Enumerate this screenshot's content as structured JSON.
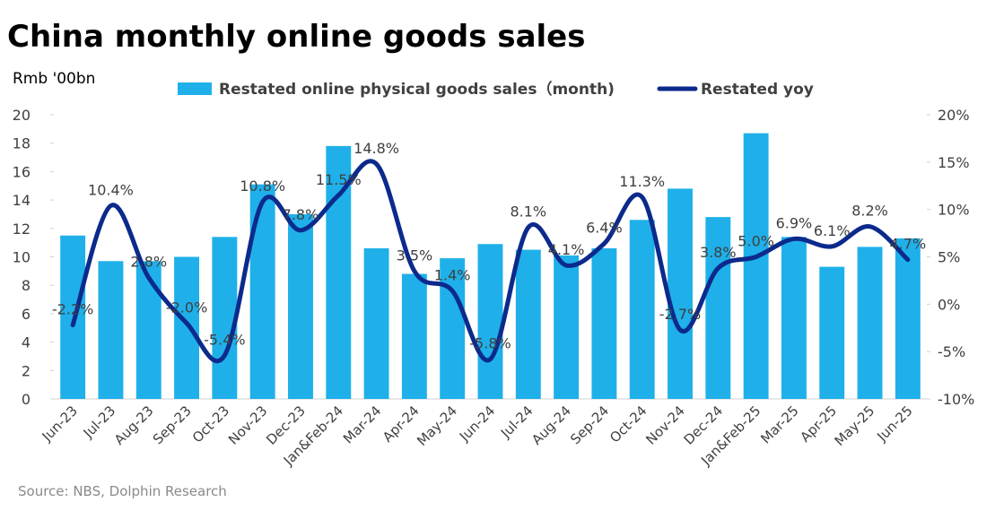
{
  "chart_data": {
    "type": "bar-line",
    "title": "China monthly online goods sales",
    "y_axis_label": "Rmb '00bn",
    "source": "Source: NBS, Dolphin Research",
    "categories": [
      "Jun-23",
      "Jul-23",
      "Aug-23",
      "Sep-23",
      "Oct-23",
      "Nov-23",
      "Dec-23",
      "Jan&Feb-24",
      "Mar-24",
      "Apr-24",
      "May-24",
      "Jun-24",
      "Jul-24",
      "Aug-24",
      "Sep-24",
      "Oct-24",
      "Nov-24",
      "Dec-24",
      "Jan&Feb-25",
      "Mar-25",
      "Apr-25",
      "May-25",
      "Jun-25"
    ],
    "series": [
      {
        "name": "Restated online physical goods sales（month)",
        "type": "bar",
        "color": "#1fb0ea",
        "values": [
          11.5,
          9.7,
          9.7,
          10.0,
          11.4,
          15.1,
          13.0,
          17.8,
          10.6,
          8.8,
          9.9,
          10.9,
          10.5,
          10.1,
          10.6,
          12.6,
          14.8,
          12.8,
          18.7,
          11.4,
          9.3,
          10.7,
          11.3
        ]
      },
      {
        "name": "Restated yoy",
        "type": "line",
        "axis": "y2",
        "color": "#0c2a8c",
        "values": [
          -2.2,
          10.4,
          2.8,
          -2.0,
          -5.4,
          10.8,
          7.8,
          11.5,
          14.8,
          3.5,
          1.4,
          -5.8,
          8.1,
          4.1,
          6.4,
          11.3,
          -2.7,
          3.8,
          5.0,
          6.9,
          6.1,
          8.2,
          4.7
        ],
        "value_labels": [
          "-2.2%",
          "10.4%",
          "2.8%",
          "-2.0%",
          "-5.4%",
          "10.8%",
          "7.8%",
          "11.5%",
          "14.8%",
          "3.5%",
          "1.4%",
          "-5.8%",
          "8.1%",
          "4.1%",
          "6.4%",
          "11.3%",
          "-2.7%",
          "3.8%",
          "5.0%",
          "6.9%",
          "6.1%",
          "8.2%",
          "4.7%"
        ]
      }
    ],
    "ylim": [
      0,
      20
    ],
    "yticks": [
      0,
      2,
      4,
      6,
      8,
      10,
      12,
      14,
      16,
      18,
      20
    ],
    "y2lim": [
      -10,
      20
    ],
    "y2ticks": [
      {
        "value": -10,
        "label": "-10%"
      },
      {
        "value": -5,
        "label": "-5%"
      },
      {
        "value": 0,
        "label": "0%"
      },
      {
        "value": 5,
        "label": "5%"
      },
      {
        "value": 10,
        "label": "10%"
      },
      {
        "value": 15,
        "label": "15%"
      },
      {
        "value": 20,
        "label": "20%"
      }
    ],
    "legend": "top"
  }
}
